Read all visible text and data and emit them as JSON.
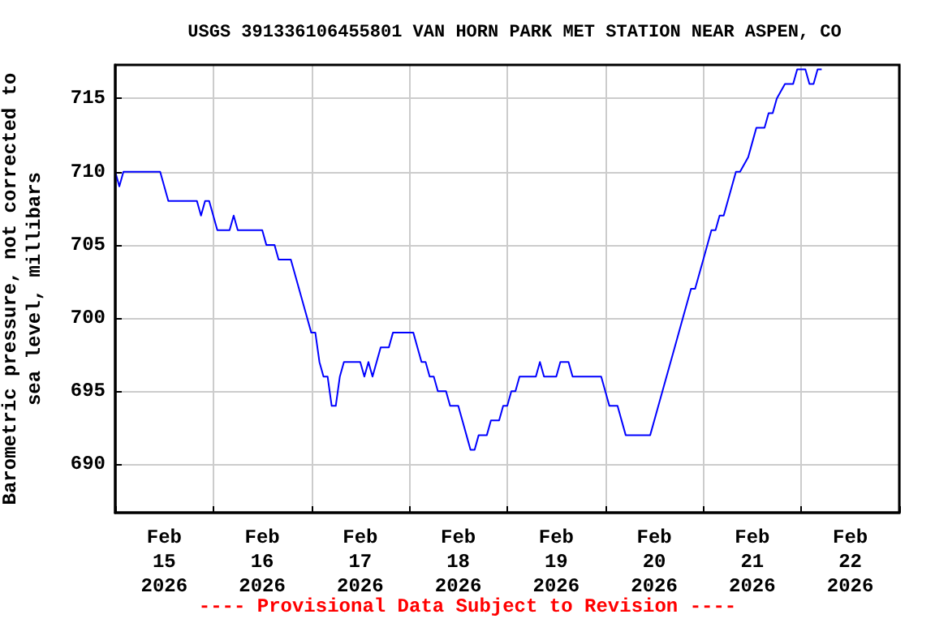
{
  "chart_data": {
    "type": "line",
    "title": "USGS 391336106455801 VAN HORN PARK MET STATION NEAR ASPEN, CO",
    "ylabel": "Barometric pressure, not corrected to\nsea level, millibars",
    "annotations": [
      "---- Provisional Data Subject to Revision ----"
    ],
    "xlim": [
      "2026-02-15T00:00",
      "2026-02-23T00:00"
    ],
    "xticks": [
      {
        "value": "2026-02-15T00:00",
        "label": null
      },
      {
        "value": "2026-02-15T12:00",
        "label": "Feb\n15\n2026"
      },
      {
        "value": "2026-02-16T00:00",
        "label": null
      },
      {
        "value": "2026-02-16T12:00",
        "label": "Feb\n16\n2026"
      },
      {
        "value": "2026-02-17T00:00",
        "label": null
      },
      {
        "value": "2026-02-17T12:00",
        "label": "Feb\n17\n2026"
      },
      {
        "value": "2026-02-18T00:00",
        "label": null
      },
      {
        "value": "2026-02-18T12:00",
        "label": "Feb\n18\n2026"
      },
      {
        "value": "2026-02-19T00:00",
        "label": null
      },
      {
        "value": "2026-02-19T12:00",
        "label": "Feb\n19\n2026"
      },
      {
        "value": "2026-02-20T00:00",
        "label": null
      },
      {
        "value": "2026-02-20T12:00",
        "label": "Feb\n20\n2026"
      },
      {
        "value": "2026-02-21T00:00",
        "label": null
      },
      {
        "value": "2026-02-21T12:00",
        "label": "Feb\n21\n2026"
      },
      {
        "value": "2026-02-22T00:00",
        "label": null
      },
      {
        "value": "2026-02-22T12:00",
        "label": "Feb\n22\n2026"
      },
      {
        "value": "2026-02-23T00:00",
        "label": null
      }
    ],
    "ylim": [
      686.7,
      717.3
    ],
    "yticks": [
      690,
      695,
      700,
      705,
      710,
      715
    ],
    "grid": true,
    "marker": "none",
    "line_style": "solid",
    "series": [
      {
        "color": "#0000ff",
        "x": [
          "2026-02-15T00:00",
          "2026-02-15T01:00",
          "2026-02-15T02:00",
          "2026-02-15T11:00",
          "2026-02-15T12:00",
          "2026-02-15T13:00",
          "2026-02-15T20:00",
          "2026-02-15T21:00",
          "2026-02-15T22:00",
          "2026-02-15T23:00",
          "2026-02-16T00:00",
          "2026-02-16T01:00",
          "2026-02-16T04:00",
          "2026-02-16T05:00",
          "2026-02-16T06:00",
          "2026-02-16T12:00",
          "2026-02-16T13:00",
          "2026-02-16T15:00",
          "2026-02-16T16:00",
          "2026-02-16T19:00",
          "2026-02-16T20:00",
          "2026-02-16T21:00",
          "2026-02-16T22:00",
          "2026-02-16T23:00",
          "2026-02-17T00:00",
          "2026-02-17T01:00",
          "2026-02-17T02:00",
          "2026-02-17T03:00",
          "2026-02-17T04:00",
          "2026-02-17T05:00",
          "2026-02-17T06:00",
          "2026-02-17T07:00",
          "2026-02-17T08:00",
          "2026-02-17T12:00",
          "2026-02-17T13:00",
          "2026-02-17T14:00",
          "2026-02-17T15:00",
          "2026-02-17T16:00",
          "2026-02-17T17:00",
          "2026-02-17T19:00",
          "2026-02-17T20:00",
          "2026-02-18T01:00",
          "2026-02-18T02:00",
          "2026-02-18T03:00",
          "2026-02-18T04:00",
          "2026-02-18T05:00",
          "2026-02-18T06:00",
          "2026-02-18T07:00",
          "2026-02-18T09:00",
          "2026-02-18T10:00",
          "2026-02-18T12:00",
          "2026-02-18T13:00",
          "2026-02-18T14:00",
          "2026-02-18T15:00",
          "2026-02-18T16:00",
          "2026-02-18T17:00",
          "2026-02-18T19:00",
          "2026-02-18T20:00",
          "2026-02-18T22:00",
          "2026-02-18T23:00",
          "2026-02-19T00:00",
          "2026-02-19T01:00",
          "2026-02-19T02:00",
          "2026-02-19T03:00",
          "2026-02-19T07:00",
          "2026-02-19T08:00",
          "2026-02-19T09:00",
          "2026-02-19T12:00",
          "2026-02-19T13:00",
          "2026-02-19T15:00",
          "2026-02-19T16:00",
          "2026-02-19T23:00",
          "2026-02-20T00:00",
          "2026-02-20T01:00",
          "2026-02-20T03:00",
          "2026-02-20T05:00",
          "2026-02-20T11:00",
          "2026-02-20T13:00",
          "2026-02-20T15:00",
          "2026-02-20T17:00",
          "2026-02-20T19:00",
          "2026-02-20T21:00",
          "2026-02-20T22:00",
          "2026-02-21T00:00",
          "2026-02-21T02:00",
          "2026-02-21T03:00",
          "2026-02-21T04:00",
          "2026-02-21T05:00",
          "2026-02-21T07:00",
          "2026-02-21T08:00",
          "2026-02-21T09:00",
          "2026-02-21T11:00",
          "2026-02-21T12:00",
          "2026-02-21T13:00",
          "2026-02-21T15:00",
          "2026-02-21T16:00",
          "2026-02-21T17:00",
          "2026-02-21T18:00",
          "2026-02-21T20:00",
          "2026-02-21T22:00",
          "2026-02-21T23:00",
          "2026-02-22T00:00",
          "2026-02-22T01:00",
          "2026-02-22T02:00",
          "2026-02-22T03:00",
          "2026-02-22T04:00",
          "2026-02-22T05:00"
        ],
        "values": [
          710,
          709,
          710,
          710,
          709,
          708,
          708,
          707,
          708,
          708,
          707,
          706,
          706,
          707,
          706,
          706,
          705,
          705,
          704,
          704,
          703,
          702,
          701,
          700,
          699,
          699,
          697,
          696,
          696,
          694,
          694,
          696,
          697,
          697,
          696,
          697,
          696,
          697,
          698,
          698,
          699,
          699,
          698,
          697,
          697,
          696,
          696,
          695,
          695,
          694,
          694,
          693,
          692,
          691,
          691,
          692,
          692,
          693,
          693,
          694,
          694,
          695,
          695,
          696,
          696,
          697,
          696,
          696,
          697,
          697,
          696,
          696,
          695,
          694,
          694,
          692,
          692,
          694,
          696,
          698,
          700,
          702,
          702,
          704,
          706,
          706,
          707,
          707,
          709,
          710,
          710,
          711,
          712,
          713,
          713,
          714,
          714,
          715,
          716,
          716,
          717,
          717,
          717,
          716,
          716,
          717,
          717
        ]
      }
    ]
  }
}
